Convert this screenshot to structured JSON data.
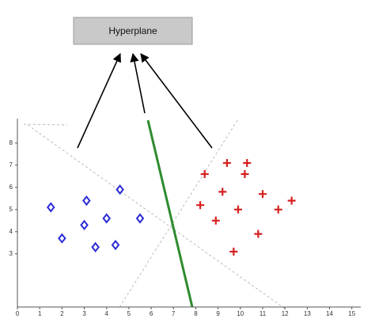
{
  "chart_data": {
    "type": "scatter",
    "annotation": "Hyperplane",
    "xlim": [
      0,
      15.4
    ],
    "ylim": [
      0.6,
      9.1
    ],
    "xticks": [
      0,
      1,
      2,
      3,
      4,
      5,
      6,
      7,
      8,
      9,
      10,
      11,
      12,
      13,
      14,
      15
    ],
    "yticks": [
      3,
      4,
      5,
      6,
      7,
      8
    ],
    "series": [
      {
        "color": "#2b2bd6",
        "marker": "diamond",
        "x": [
          1.5,
          3.1,
          4.6,
          4.0,
          3.0,
          5.5,
          2.0,
          3.5,
          4.4
        ],
        "values": [
          5.1,
          5.4,
          5.9,
          4.6,
          4.3,
          4.6,
          3.7,
          3.3,
          3.4
        ]
      },
      {
        "color": "#d62020",
        "marker": "plus",
        "x": [
          8.4,
          9.4,
          10.3,
          10.2,
          9.2,
          11.0,
          8.2,
          9.9,
          8.9,
          11.7,
          12.3,
          10.8,
          9.7
        ],
        "values": [
          6.6,
          7.1,
          7.1,
          6.6,
          5.8,
          5.7,
          5.2,
          5.0,
          4.5,
          5.0,
          5.4,
          3.9,
          3.1
        ]
      }
    ]
  }
}
